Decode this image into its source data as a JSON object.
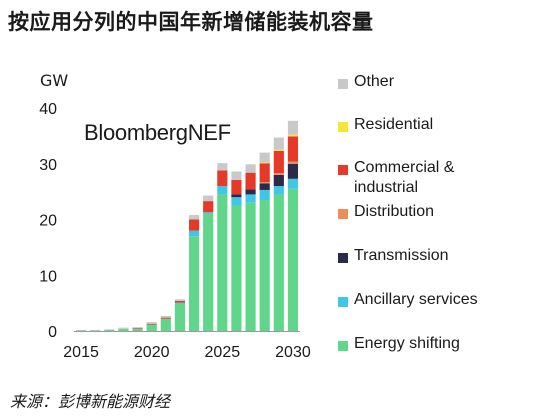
{
  "title": "按应用分列的中国年新增储能装机容量",
  "brand": "BloombergNEF",
  "source": "来源：彭博新能源财经",
  "chart_data": {
    "type": "bar",
    "stacked": true,
    "unit": "GW",
    "categories": [
      "2015",
      "2016",
      "2017",
      "2018",
      "2019",
      "2020",
      "2021",
      "2022",
      "2023",
      "2024",
      "2025",
      "2026",
      "2027",
      "2028",
      "2029",
      "2030"
    ],
    "x_tick_labels": [
      "2015",
      "2020",
      "2025",
      "2030"
    ],
    "y_ticks": [
      0,
      10,
      20,
      30,
      40
    ],
    "ylim": [
      0,
      40
    ],
    "grid": false,
    "legend_position": "right",
    "series": [
      {
        "name": "Energy shifting",
        "color": "#5fd68a",
        "values": [
          0.1,
          0.1,
          0.2,
          0.4,
          0.4,
          1.2,
          2.2,
          5.0,
          17.0,
          21.0,
          24.5,
          22.5,
          23.0,
          23.5,
          24.5,
          25.5
        ]
      },
      {
        "name": "Ancillary services",
        "color": "#3fc6e8",
        "values": [
          0,
          0,
          0,
          0,
          0,
          0,
          0,
          0.1,
          1.0,
          0.3,
          1.5,
          1.5,
          1.5,
          1.8,
          1.5,
          1.8
        ]
      },
      {
        "name": "Transmission",
        "color": "#2a2a4a",
        "values": [
          0,
          0,
          0,
          0,
          0,
          0,
          0,
          0,
          0,
          0,
          0,
          0.5,
          0.9,
          1.2,
          2.0,
          2.7
        ]
      },
      {
        "name": "Distribution",
        "color": "#f08c5a",
        "values": [
          0,
          0,
          0,
          0,
          0,
          0,
          0,
          0,
          0,
          0,
          0,
          0,
          0,
          0.2,
          0.3,
          0.4
        ]
      },
      {
        "name": "Commercial &\nindustrial",
        "color": "#e53a2a",
        "values": [
          0,
          0,
          0,
          0,
          0.1,
          0.1,
          0.2,
          0.3,
          2.0,
          2.0,
          2.8,
          2.6,
          3.0,
          3.4,
          4.0,
          4.5
        ]
      },
      {
        "name": "Residential",
        "color": "#f5e63a",
        "values": [
          0,
          0,
          0,
          0,
          0,
          0,
          0,
          0,
          0,
          0,
          0,
          0,
          0,
          0.1,
          0.2,
          0.3
        ]
      },
      {
        "name": "Other",
        "color": "#c9c9c9",
        "values": [
          0.1,
          0.1,
          0.1,
          0.2,
          0.2,
          0.3,
          0.3,
          0.3,
          0.8,
          1.0,
          1.3,
          1.5,
          1.5,
          1.8,
          2.2,
          2.5
        ]
      }
    ]
  }
}
